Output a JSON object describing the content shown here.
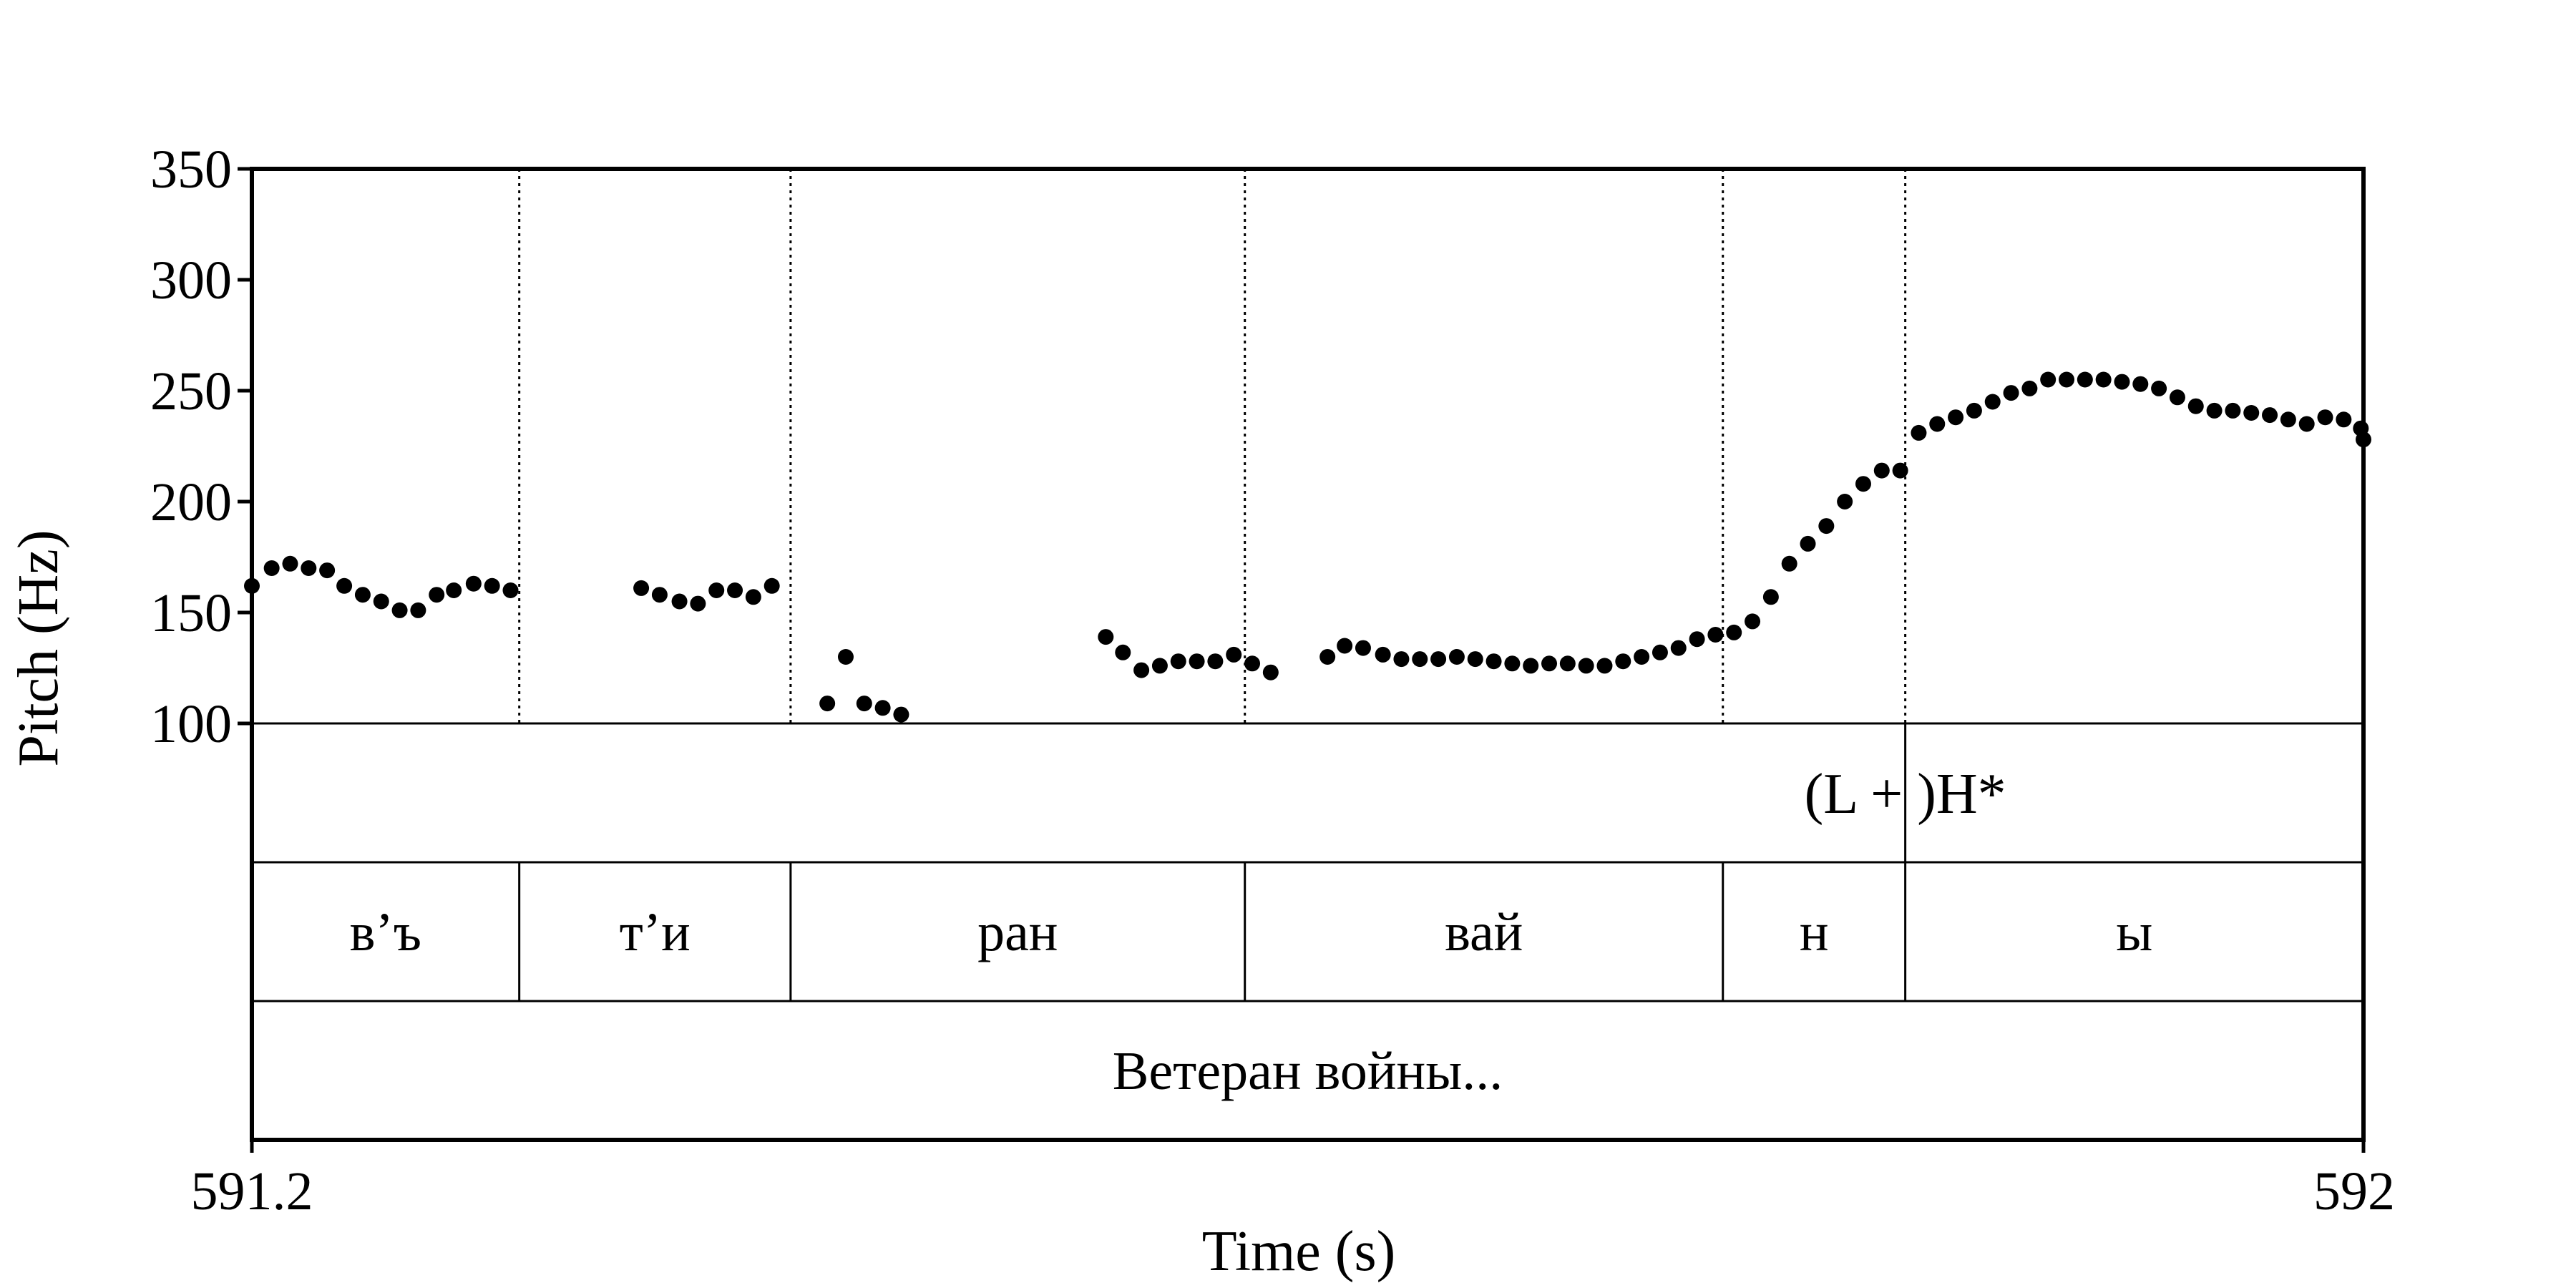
{
  "chart_data": {
    "type": "scatter",
    "xlabel": "Time (s)",
    "ylabel": "Pitch (Hz)",
    "xlim": [
      591.2,
      592
    ],
    "ylim": [
      100,
      350
    ],
    "x_tick_labels": [
      "591.2",
      "592"
    ],
    "y_ticks": [
      100,
      150,
      200,
      250,
      300,
      350
    ],
    "grid": false,
    "legend": "none",
    "point_color": "#000000",
    "series": [
      {
        "values": [
          [
            591.2,
            162
          ],
          [
            591.2075,
            170
          ],
          [
            591.2145,
            172
          ],
          [
            591.2215,
            170
          ],
          [
            591.2285,
            169
          ],
          [
            591.235,
            162
          ],
          [
            591.242,
            158
          ],
          [
            591.249,
            155
          ],
          [
            591.256,
            151
          ],
          [
            591.263,
            151
          ],
          [
            591.27,
            158
          ],
          [
            591.2765,
            160
          ],
          [
            591.284,
            163
          ],
          [
            591.291,
            162
          ],
          [
            591.298,
            160
          ],
          [
            591.3475,
            161
          ],
          [
            591.3545,
            158
          ],
          [
            591.362,
            155
          ],
          [
            591.369,
            154
          ],
          [
            591.376,
            160
          ],
          [
            591.383,
            160
          ],
          [
            591.39,
            157
          ],
          [
            591.397,
            162
          ],
          [
            591.418,
            109
          ],
          [
            591.425,
            130
          ],
          [
            591.432,
            109
          ],
          [
            591.439,
            107
          ],
          [
            591.446,
            104
          ],
          [
            591.5235,
            139
          ],
          [
            591.53,
            132
          ],
          [
            591.537,
            124
          ],
          [
            591.544,
            126
          ],
          [
            591.551,
            128
          ],
          [
            591.558,
            128
          ],
          [
            591.565,
            128
          ],
          [
            591.572,
            131
          ],
          [
            591.579,
            127
          ],
          [
            591.586,
            123
          ],
          [
            591.6075,
            130
          ],
          [
            591.614,
            135
          ],
          [
            591.621,
            134
          ],
          [
            591.6285,
            131
          ],
          [
            591.6355,
            129
          ],
          [
            591.6425,
            129
          ],
          [
            591.6495,
            129
          ],
          [
            591.6565,
            130
          ],
          [
            591.6635,
            129
          ],
          [
            591.6705,
            128
          ],
          [
            591.6775,
            127
          ],
          [
            591.6845,
            126
          ],
          [
            591.6915,
            127
          ],
          [
            591.6985,
            127
          ],
          [
            591.7055,
            126
          ],
          [
            591.7125,
            126
          ],
          [
            591.7195,
            128
          ],
          [
            591.7265,
            130
          ],
          [
            591.7335,
            132
          ],
          [
            591.7405,
            134
          ],
          [
            591.7475,
            138
          ],
          [
            591.7545,
            140
          ],
          [
            591.7615,
            141
          ],
          [
            591.7685,
            146
          ],
          [
            591.7755,
            157
          ],
          [
            591.7825,
            172
          ],
          [
            591.7895,
            181
          ],
          [
            591.7965,
            189
          ],
          [
            591.8035,
            200
          ],
          [
            591.8105,
            208
          ],
          [
            591.8175,
            214
          ],
          [
            591.8245,
            214
          ],
          [
            591.8315,
            231
          ],
          [
            591.8385,
            235
          ],
          [
            591.8455,
            238
          ],
          [
            591.8525,
            241
          ],
          [
            591.8595,
            245
          ],
          [
            591.8665,
            249
          ],
          [
            591.8735,
            251
          ],
          [
            591.8805,
            255
          ],
          [
            591.8875,
            255
          ],
          [
            591.8945,
            255
          ],
          [
            591.9015,
            255
          ],
          [
            591.9085,
            254
          ],
          [
            591.9155,
            253
          ],
          [
            591.9225,
            251
          ],
          [
            591.9295,
            247
          ],
          [
            591.9365,
            243
          ],
          [
            591.9435,
            241
          ],
          [
            591.9505,
            241
          ],
          [
            591.9575,
            240
          ],
          [
            591.9645,
            239
          ],
          [
            591.9715,
            237
          ],
          [
            591.9785,
            235
          ],
          [
            591.9855,
            238
          ],
          [
            591.9925,
            237
          ],
          [
            591.999,
            233
          ],
          [
            592.0,
            228
          ]
        ]
      }
    ],
    "boundaries": [
      591.3013,
      591.4041,
      591.5762,
      591.7573,
      591.8264
    ],
    "tones": [
      {
        "label": "(L + )H*",
        "time": 591.8264
      }
    ],
    "syllables": [
      {
        "label": "в’ъ",
        "start": 591.2,
        "end": 591.3013
      },
      {
        "label": "т’и",
        "start": 591.3013,
        "end": 591.4041
      },
      {
        "label": "ран",
        "start": 591.4041,
        "end": 591.5762
      },
      {
        "label": "вай",
        "start": 591.5762,
        "end": 591.7573
      },
      {
        "label": "н",
        "start": 591.7573,
        "end": 591.8264
      },
      {
        "label": "ы",
        "start": 591.8264,
        "end": 592.0
      }
    ],
    "phrase": "Ветеран войны..."
  }
}
